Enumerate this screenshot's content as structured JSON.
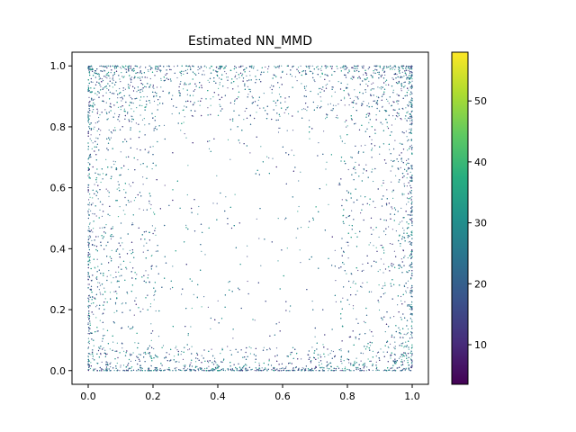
{
  "chart_data": {
    "type": "scatter",
    "title": "Estimated NN_MMD",
    "xlabel": "",
    "ylabel": "",
    "xlim": [
      -0.05,
      1.05
    ],
    "ylim": [
      -0.045,
      1.045
    ],
    "x_ticks": [
      0.0,
      0.2,
      0.4,
      0.6,
      0.8,
      1.0
    ],
    "x_tick_labels": [
      "0.0",
      "0.2",
      "0.4",
      "0.6",
      "0.8",
      "1.0"
    ],
    "y_ticks": [
      0.0,
      0.2,
      0.4,
      0.6,
      0.8,
      1.0
    ],
    "y_tick_labels": [
      "0.0",
      "0.2",
      "0.4",
      "0.6",
      "0.8",
      "1.0"
    ],
    "grid": false,
    "colormap": "viridis",
    "colorbar": {
      "range": [
        3.5,
        58
      ],
      "ticks": [
        10,
        20,
        30,
        40,
        50
      ],
      "tick_labels": [
        "10",
        "20",
        "30",
        "40",
        "50"
      ]
    },
    "marker_color_range": [
      10,
      35
    ],
    "description_of_distribution": "Approximately 20000 points on the unit square, densely concentrated along all four edges (strongest at the top corners and bottom edge) and sparse in the interior; point colors are mostly mid-range viridis (about 15 to 30)."
  }
}
